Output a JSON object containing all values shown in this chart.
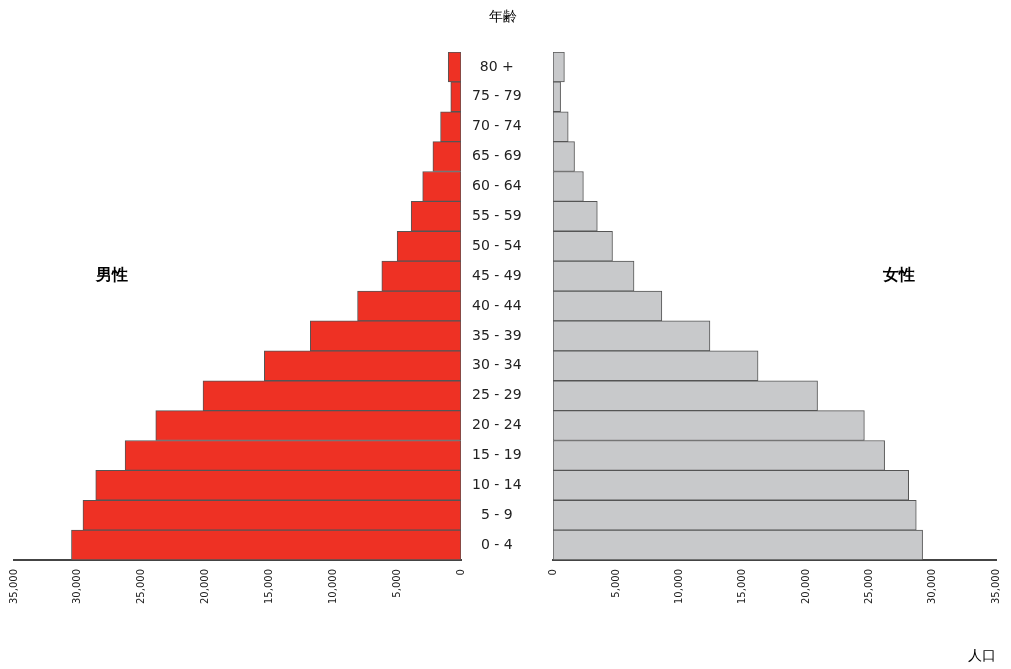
{
  "chart_data": [
    {
      "type": "bar",
      "orientation": "horizontal",
      "ylabel": "年齢",
      "categories": [
        "80 +",
        "75 - 79",
        "70 - 74",
        "65 - 69",
        "60 - 64",
        "55 - 59",
        "50 - 54",
        "45 - 49",
        "40 - 44",
        "35 - 39",
        "30 - 34",
        "25 - 29",
        "20 - 24",
        "15 - 19",
        "10 - 14",
        "5 - 9",
        "0 - 4"
      ],
      "series": [
        {
          "name": "男性",
          "color": "#ee3124",
          "values": [
            1000,
            800,
            1600,
            2200,
            3000,
            3900,
            5000,
            6200,
            8100,
            11800,
            15400,
            20200,
            23900,
            26300,
            28600,
            29600,
            30500
          ]
        }
      ],
      "xlim": [
        35000,
        0
      ],
      "xticks": [
        {
          "value": 35000,
          "label": "35,000"
        },
        {
          "value": 30000,
          "label": "30,000"
        },
        {
          "value": 25000,
          "label": "25,000"
        },
        {
          "value": 20000,
          "label": "20,000"
        },
        {
          "value": 15000,
          "label": "15,000"
        },
        {
          "value": 10000,
          "label": "10,000"
        },
        {
          "value": 5000,
          "label": "5,000"
        },
        0
      ],
      "grid": false,
      "legend": false
    },
    {
      "type": "bar",
      "orientation": "horizontal",
      "xlabel": "人口",
      "categories": [
        null,
        null,
        null,
        null,
        null,
        null,
        null,
        null,
        null,
        null,
        null,
        null,
        null,
        null,
        null,
        null,
        null
      ],
      "series": [
        {
          "name": "女性",
          "color": "#c8c9cb",
          "values": [
            900,
            600,
            1200,
            1700,
            2400,
            3500,
            4700,
            6400,
            8600,
            12400,
            16200,
            20900,
            24600,
            26200,
            28100,
            28700,
            29200
          ]
        }
      ],
      "xlim": [
        0,
        35000
      ],
      "xticks": [
        0,
        {
          "value": 5000,
          "label": "5,000"
        },
        {
          "value": 10000,
          "label": "10,000"
        },
        {
          "value": 15000,
          "label": "15,000"
        },
        {
          "value": 20000,
          "label": "20,000"
        },
        {
          "value": 25000,
          "label": "25,000"
        },
        {
          "value": 30000,
          "label": "30,000"
        },
        {
          "value": 35000,
          "label": "35,000"
        }
      ],
      "grid": false,
      "legend": false,
      "tick_labels": "x"
    }
  ]
}
